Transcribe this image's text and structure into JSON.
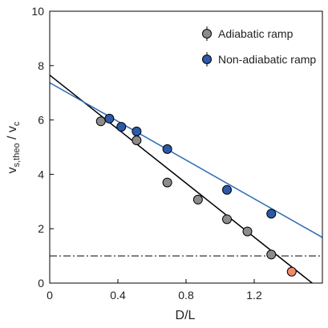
{
  "chart_data": {
    "type": "scatter",
    "xlabel": "D/L",
    "ylabel": [
      "v",
      "s,theo",
      " / v",
      "c"
    ],
    "xlim": [
      0,
      1.6
    ],
    "ylim": [
      0,
      10
    ],
    "xticks": [
      0,
      0.4,
      0.8,
      1.2
    ],
    "yticks": [
      0,
      2,
      4,
      6,
      8,
      10
    ],
    "legend": "upper right",
    "series": [
      {
        "name": "Adiabatic ramp",
        "color": "#8c8c8c",
        "x": [
          0.3,
          0.51,
          0.69,
          0.87,
          1.04,
          1.16,
          1.3
        ],
        "values": [
          5.95,
          5.25,
          3.7,
          3.07,
          2.35,
          1.9,
          1.05
        ]
      },
      {
        "name": "Non-adiabatic ramp",
        "color": "#2c5aa8",
        "x": [
          0.35,
          0.42,
          0.51,
          0.69,
          1.04,
          1.3
        ],
        "values": [
          6.05,
          5.75,
          5.58,
          4.93,
          3.43,
          2.55
        ]
      },
      {
        "color": "#f08a6a",
        "x": [
          1.42
        ],
        "values": [
          0.42
        ]
      }
    ],
    "fit_lines": [
      {
        "color": "#000000",
        "x": [
          0,
          1.54
        ],
        "values": [
          7.65,
          0
        ]
      },
      {
        "color": "#2e6bb5",
        "x": [
          0,
          1.6
        ],
        "values": [
          7.37,
          1.68
        ]
      }
    ],
    "reference_line": 1
  }
}
